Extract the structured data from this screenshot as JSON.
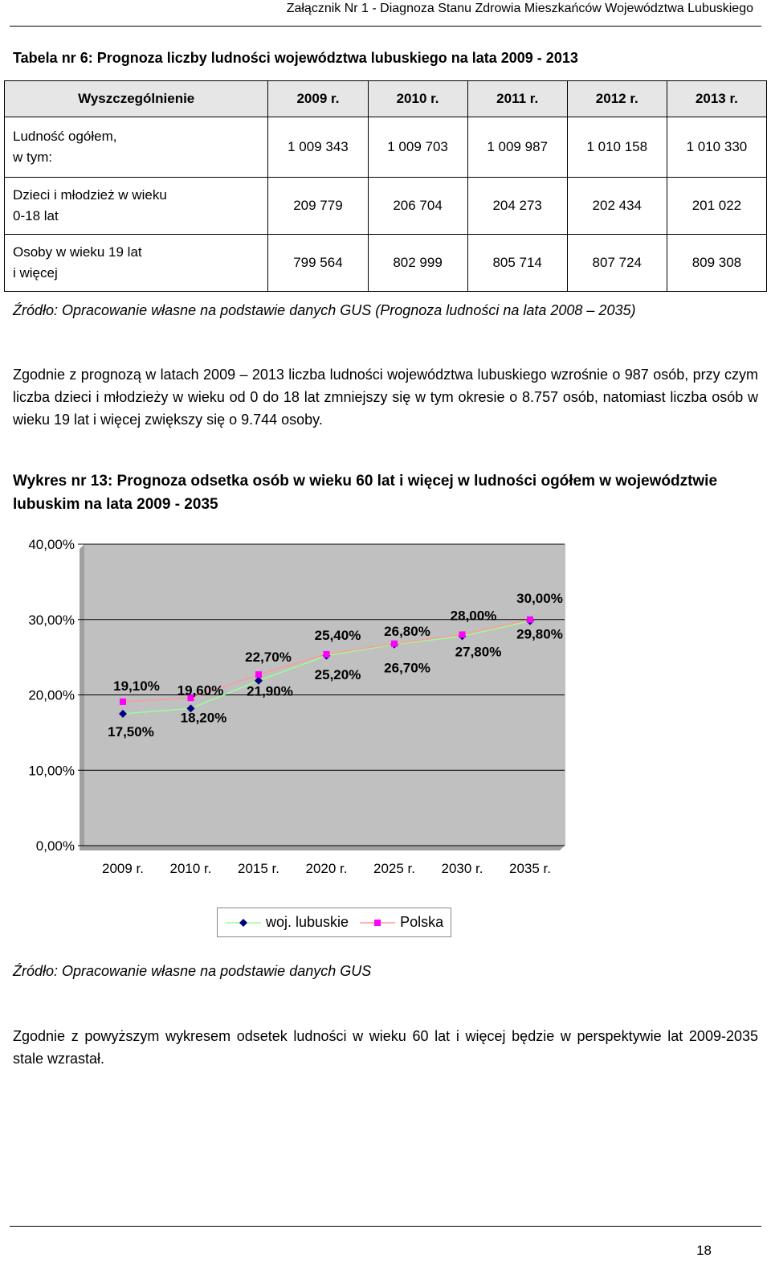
{
  "header": {
    "text": "Załącznik Nr 1 - Diagnoza Stanu Zdrowia Mieszkańców Województwa Lubuskiego"
  },
  "table": {
    "title": "Tabela nr 6: Prognoza liczby ludności województwa lubuskiego na lata 2009 - 2013",
    "headers": [
      "Wyszczególnienie",
      "2009 r.",
      "2010 r.",
      "2011 r.",
      "2012 r.",
      "2013 r."
    ],
    "rows": [
      {
        "label_line1": "Ludność ogółem,",
        "label_line2": "w tym:",
        "values": [
          "1 009 343",
          "1 009 703",
          "1 009 987",
          "1 010 158",
          "1 010 330"
        ]
      },
      {
        "label_line1": "Dzieci i młodzież w wieku",
        "label_line2": "0-18 lat",
        "values": [
          "209 779",
          "206 704",
          "204 273",
          "202 434",
          "201 022"
        ]
      },
      {
        "label_line1": "Osoby w wieku 19 lat",
        "label_line2": "i więcej",
        "values": [
          "799 564",
          "802 999",
          "805 714",
          "807 724",
          "809 308"
        ]
      }
    ],
    "source": "Źródło: Opracowanie własne na podstawie danych GUS (Prognoza ludności na lata 2008 – 2035)"
  },
  "paragraph1": "Zgodnie z prognozą w latach 2009 – 2013 liczba ludności województwa lubuskiego wzrośnie o 987 osób, przy czym liczba dzieci i młodzieży w wieku od 0 do 18 lat zmniejszy się w tym okresie o 8.757 osób, natomiast liczba osób w wieku 19 lat i więcej zwiększy się o 9.744 osoby.",
  "chart_title": "Wykres nr 13: Prognoza odsetka osób w wieku 60 lat i więcej w ludności ogółem w województwie lubuskim na lata 2009 - 2035",
  "chart_data": {
    "type": "line",
    "categories": [
      "2009 r.",
      "2010 r.",
      "2015 r.",
      "2020 r.",
      "2025 r.",
      "2030 r.",
      "2035 r."
    ],
    "series": [
      {
        "name": "woj. lubuskie",
        "values": [
          17.5,
          18.2,
          21.9,
          25.2,
          26.7,
          27.8,
          29.8
        ],
        "labels": [
          "17,50%",
          "18,20%",
          "21,90%",
          "25,20%",
          "26,70%",
          "27,80%",
          "29,80%"
        ],
        "color": "#000080",
        "line_color": "#99ff99"
      },
      {
        "name": "Polska",
        "values": [
          19.1,
          19.6,
          22.7,
          25.4,
          26.8,
          28.0,
          30.0
        ],
        "labels": [
          "19,10%",
          "19,60%",
          "22,70%",
          "25,40%",
          "26,80%",
          "28,00%",
          "30,00%"
        ],
        "color": "#ff00ff",
        "line_color": "#ff9999"
      }
    ],
    "ylim": [
      0,
      40
    ],
    "yticks": [
      "0,00%",
      "10,00%",
      "20,00%",
      "30,00%",
      "40,00%"
    ],
    "ytick_values": [
      0,
      10,
      20,
      30,
      40
    ],
    "grid": true,
    "plot_background": "#c0c0c0",
    "legend": "bottom"
  },
  "chart_source": "Źródło: Opracowanie własne na podstawie danych GUS",
  "paragraph2": "Zgodnie z powyższym wykresem odsetek ludności w wieku 60 lat i więcej będzie w perspektywie lat 2009-2035 stale wzrastał.",
  "page_number": "18"
}
